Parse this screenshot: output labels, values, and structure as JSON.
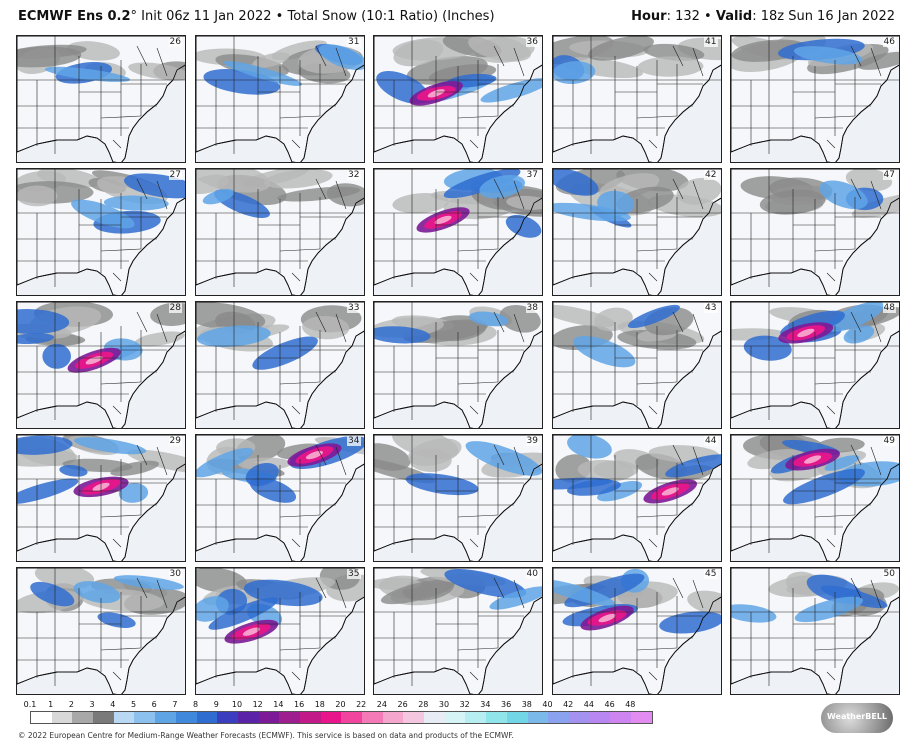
{
  "header": {
    "model": "ECMWF Ens 0.2",
    "degree": "°",
    "init": "Init 06z 11 Jan 2022",
    "separator": "•",
    "product": "Total Snow (10:1 Ratio) (Inches)",
    "hour_label": "Hour",
    "hour_value": ": 132",
    "valid_label": "Valid",
    "valid_value": ": 18z Sun 16 Jan 2022"
  },
  "panels": [
    {
      "member": "26",
      "snow": "low"
    },
    {
      "member": "31",
      "snow": "moderate"
    },
    {
      "member": "36",
      "snow": "heavy"
    },
    {
      "member": "41",
      "snow": "low"
    },
    {
      "member": "46",
      "snow": "low"
    },
    {
      "member": "27",
      "snow": "moderate"
    },
    {
      "member": "32",
      "snow": "low"
    },
    {
      "member": "37",
      "snow": "heavy"
    },
    {
      "member": "42",
      "snow": "moderate"
    },
    {
      "member": "47",
      "snow": "low"
    },
    {
      "member": "28",
      "snow": "heavy"
    },
    {
      "member": "33",
      "snow": "low"
    },
    {
      "member": "38",
      "snow": "low"
    },
    {
      "member": "43",
      "snow": "low"
    },
    {
      "member": "48",
      "snow": "heavy"
    },
    {
      "member": "29",
      "snow": "heavy"
    },
    {
      "member": "34",
      "snow": "heavy"
    },
    {
      "member": "39",
      "snow": "low"
    },
    {
      "member": "44",
      "snow": "heavy"
    },
    {
      "member": "49",
      "snow": "heavy"
    },
    {
      "member": "30",
      "snow": "moderate"
    },
    {
      "member": "35",
      "snow": "heavy"
    },
    {
      "member": "40",
      "snow": "low"
    },
    {
      "member": "45",
      "snow": "heavy"
    },
    {
      "member": "50",
      "snow": "moderate"
    }
  ],
  "colorbar": {
    "labels": [
      "0.1",
      "1",
      "2",
      "3",
      "4",
      "5",
      "6",
      "7",
      "8",
      "9",
      "10",
      "12",
      "14",
      "16",
      "18",
      "20",
      "22",
      "24",
      "26",
      "28",
      "30",
      "32",
      "34",
      "36",
      "38",
      "40",
      "42",
      "44",
      "46",
      "48"
    ],
    "colors": [
      "#ffffff",
      "#d8d8d8",
      "#a8a8a8",
      "#7a7a7a",
      "#b9d8f4",
      "#8cc0ef",
      "#5fa5e6",
      "#3f88dc",
      "#2f6dd0",
      "#3b3fbf",
      "#5a23a8",
      "#7d1a97",
      "#9e1d8f",
      "#c21a88",
      "#e8168a",
      "#f0449e",
      "#f47ab7",
      "#f5a6cd",
      "#f5c6df",
      "#e8ecf5",
      "#d6f3f6",
      "#b6eef1",
      "#8fe5ea",
      "#73d6e6",
      "#7bb9ea",
      "#8aa2ef",
      "#a392f0",
      "#b987f2",
      "#cf85f1",
      "#e28cf2"
    ]
  },
  "footer": "© 2022 European Centre for Medium-Range Weather Forecasts (ECMWF). This service is based on data and products of the ECMWF.",
  "logo_text": "WeatherBELL",
  "colors": {
    "light_snow": "#a6a6a6",
    "blue": "#5fa5e6",
    "dark_blue": "#2f6dd0",
    "purple": "#7d1a97",
    "magenta": "#e8168a",
    "pink": "#f5a6cd",
    "ocean": "#eef1f6"
  }
}
